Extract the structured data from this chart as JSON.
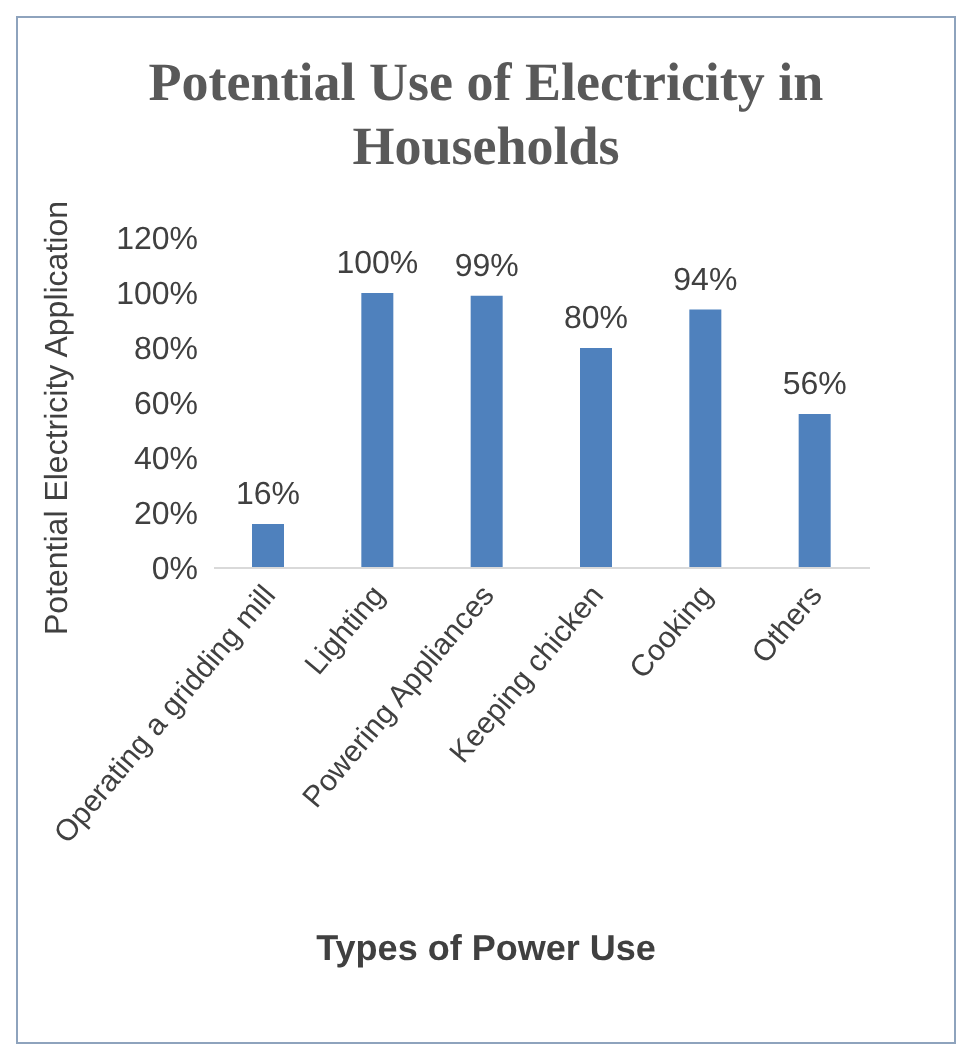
{
  "chart_data": {
    "type": "bar",
    "title": "Potential Use of Electricity in Households",
    "xlabel": "Types of Power Use",
    "ylabel": "Potential Electricity Application",
    "categories": [
      "Operating a gridding mill",
      "Lighting",
      "Powering Appliances",
      "Keeping chicken",
      "Cooking",
      "Others"
    ],
    "values": [
      16,
      100,
      99,
      80,
      94,
      56
    ],
    "value_labels": [
      "16%",
      "100%",
      "99%",
      "80%",
      "94%",
      "56%"
    ],
    "color": "#4f81bd",
    "ylim": [
      0,
      120
    ],
    "yticks": [
      {
        "value": 0,
        "label": "0%"
      },
      {
        "value": 20,
        "label": "20%"
      },
      {
        "value": 40,
        "label": "40%"
      },
      {
        "value": 60,
        "label": "60%"
      },
      {
        "value": 80,
        "label": "80%"
      },
      {
        "value": 100,
        "label": "100%"
      },
      {
        "value": 120,
        "label": "120%"
      }
    ],
    "grid": false,
    "legend": false
  }
}
